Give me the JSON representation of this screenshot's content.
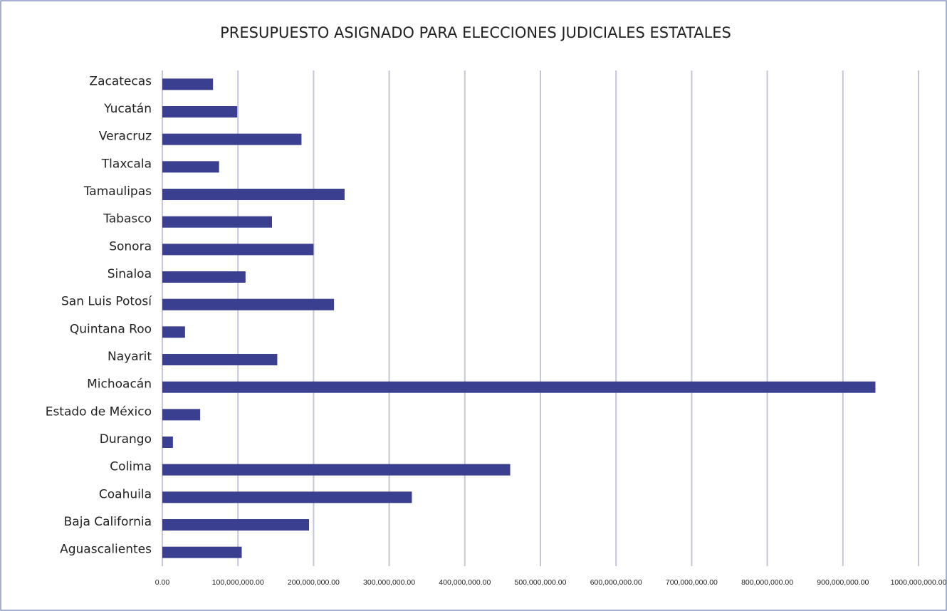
{
  "chart_data": {
    "type": "hbar",
    "title": "PRESUPUESTO ASIGNADO PARA ELECCIONES JUDICIALES ESTATALES",
    "categories": [
      "Zacatecas",
      "Yucatán",
      "Veracruz",
      "Tlaxcala",
      "Tamaulipas",
      "Tabasco",
      "Sonora",
      "Sinaloa",
      "San Luis Potosí",
      "Quintana Roo",
      "Nayarit",
      "Michoacán",
      "Estado de México",
      "Durango",
      "Colima",
      "Coahuila",
      "Baja California",
      "Aguascalientes"
    ],
    "values": [
      67000000,
      99000000,
      184000000,
      75000000,
      241000000,
      145000000,
      200000000,
      110000000,
      227000000,
      30000000,
      152000000,
      943000000,
      50000000,
      14000000,
      460000000,
      330000000,
      194000000,
      105000000
    ],
    "color": "#3b3f8f",
    "xlim": [
      0,
      1000000000
    ],
    "xticks": [
      {
        "value": 0,
        "label": "0.00"
      },
      {
        "value": 100000000,
        "label": "100,000,000.00"
      },
      {
        "value": 200000000,
        "label": "200,000,000.00"
      },
      {
        "value": 300000000,
        "label": "300,000,000.00"
      },
      {
        "value": 400000000,
        "label": "400,000,000.00"
      },
      {
        "value": 500000000,
        "label": "500,000,000.00"
      },
      {
        "value": 600000000,
        "label": "600,000,000.00"
      },
      {
        "value": 700000000,
        "label": "700,000,000.00"
      },
      {
        "value": 800000000,
        "label": "800,000,000.00"
      },
      {
        "value": 900000000,
        "label": "900,000,000.00"
      },
      {
        "value": 1000000000,
        "label": "1000,000,000.00"
      }
    ],
    "grid": true
  }
}
